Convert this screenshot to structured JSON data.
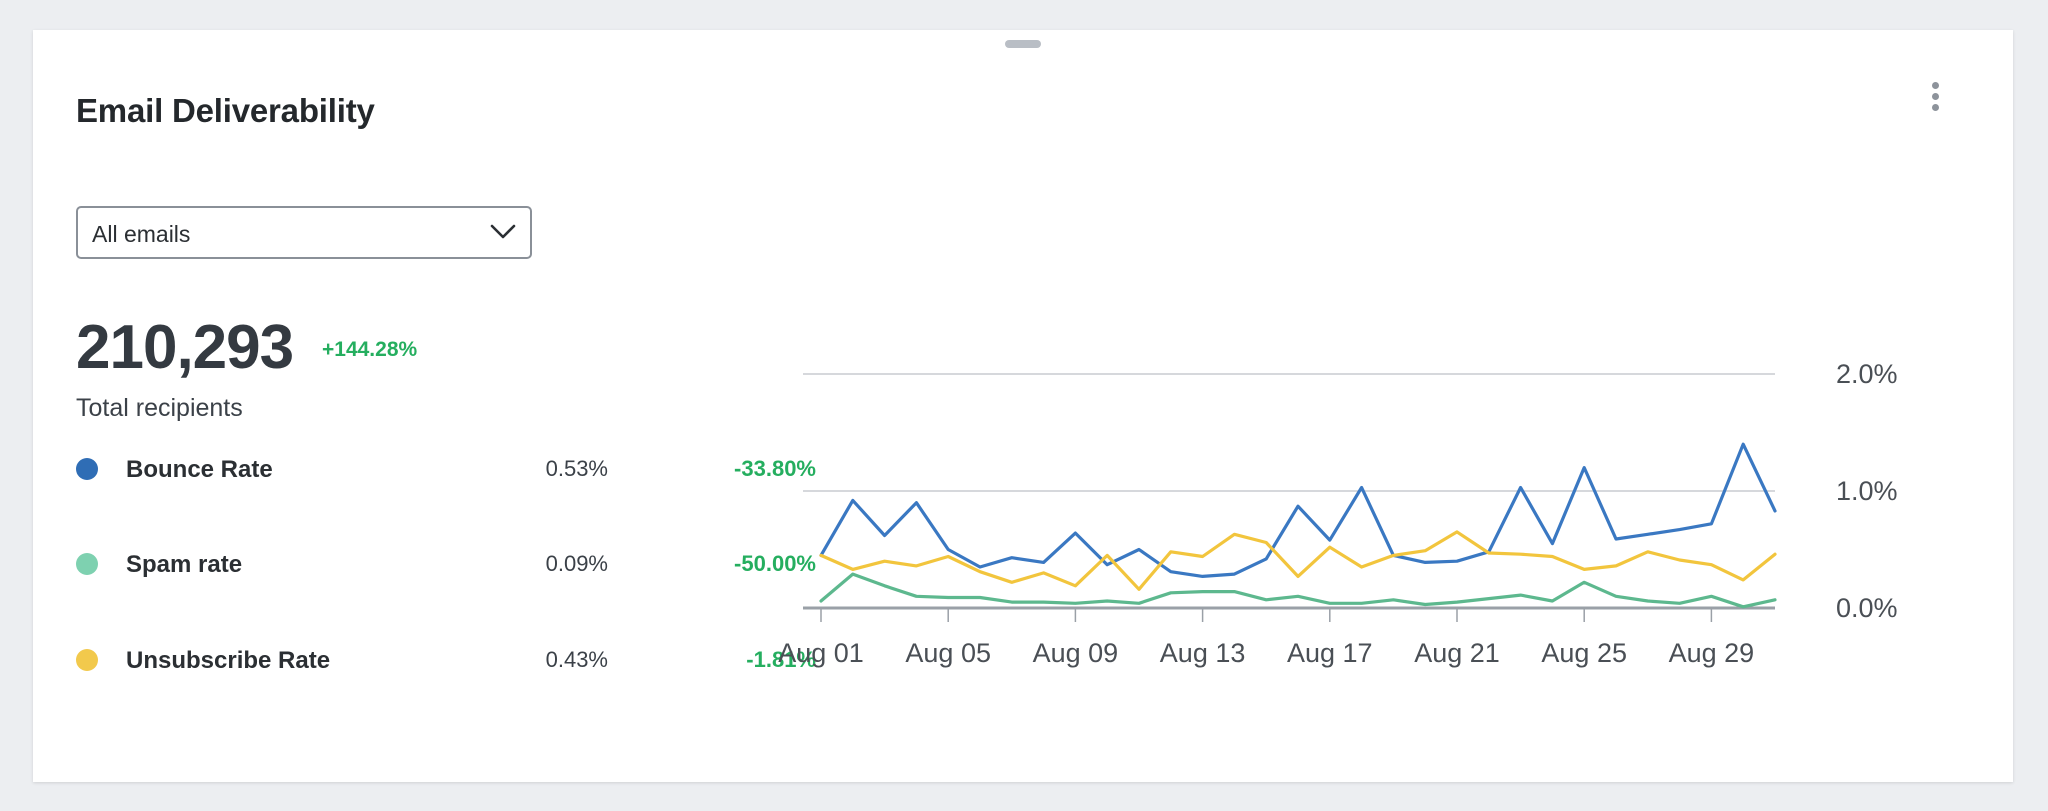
{
  "widget": {
    "title": "Email Deliverability",
    "filter": {
      "selected": "All emails"
    },
    "total": {
      "value": "210,293",
      "change": "+144.28%",
      "label": "Total recipients"
    }
  },
  "metrics": [
    {
      "label": "Bounce Rate",
      "value": "0.53%",
      "change": "-33.80%",
      "color": "#2f6db5"
    },
    {
      "label": "Spam rate",
      "value": "0.09%",
      "change": "-50.00%",
      "color": "#7ed1b0"
    },
    {
      "label": "Unsubscribe Rate",
      "value": "0.43%",
      "change": "-1.81%",
      "color": "#f2c94c"
    }
  ],
  "chart_data": {
    "type": "line",
    "x": [
      "Aug 01",
      "Aug 02",
      "Aug 03",
      "Aug 04",
      "Aug 05",
      "Aug 06",
      "Aug 07",
      "Aug 08",
      "Aug 09",
      "Aug 10",
      "Aug 11",
      "Aug 12",
      "Aug 13",
      "Aug 14",
      "Aug 15",
      "Aug 16",
      "Aug 17",
      "Aug 18",
      "Aug 19",
      "Aug 20",
      "Aug 21",
      "Aug 22",
      "Aug 23",
      "Aug 24",
      "Aug 25",
      "Aug 26",
      "Aug 27",
      "Aug 28",
      "Aug 29",
      "Aug 30",
      "Aug 31"
    ],
    "xticks": [
      "Aug 01",
      "Aug 05",
      "Aug 09",
      "Aug 13",
      "Aug 17",
      "Aug 21",
      "Aug 25",
      "Aug 29"
    ],
    "yticks": [
      "0.0%",
      "1.0%",
      "2.0%"
    ],
    "ylim": [
      0,
      2.0
    ],
    "yaxis_position": "right",
    "grid": true,
    "series": [
      {
        "name": "Bounce Rate",
        "color": "#3a78c2",
        "values": [
          0.45,
          0.92,
          0.62,
          0.9,
          0.5,
          0.35,
          0.43,
          0.39,
          0.64,
          0.37,
          0.5,
          0.31,
          0.27,
          0.29,
          0.42,
          0.87,
          0.58,
          1.03,
          0.45,
          0.39,
          0.4,
          0.48,
          1.03,
          0.55,
          1.2,
          0.59,
          0.63,
          0.67,
          0.72,
          1.4,
          0.83
        ]
      },
      {
        "name": "Spam rate",
        "color": "#5db88e",
        "values": [
          0.06,
          0.29,
          0.19,
          0.1,
          0.09,
          0.09,
          0.05,
          0.05,
          0.04,
          0.06,
          0.04,
          0.13,
          0.14,
          0.14,
          0.07,
          0.1,
          0.04,
          0.04,
          0.07,
          0.03,
          0.05,
          0.08,
          0.11,
          0.06,
          0.22,
          0.1,
          0.06,
          0.04,
          0.1,
          0.01,
          0.07
        ]
      },
      {
        "name": "Unsubscribe Rate",
        "color": "#f2c53d",
        "values": [
          0.45,
          0.33,
          0.4,
          0.36,
          0.44,
          0.31,
          0.22,
          0.3,
          0.19,
          0.45,
          0.16,
          0.48,
          0.44,
          0.63,
          0.56,
          0.27,
          0.52,
          0.35,
          0.45,
          0.49,
          0.65,
          0.47,
          0.46,
          0.44,
          0.33,
          0.36,
          0.48,
          0.41,
          0.37,
          0.24,
          0.46
        ]
      }
    ]
  }
}
